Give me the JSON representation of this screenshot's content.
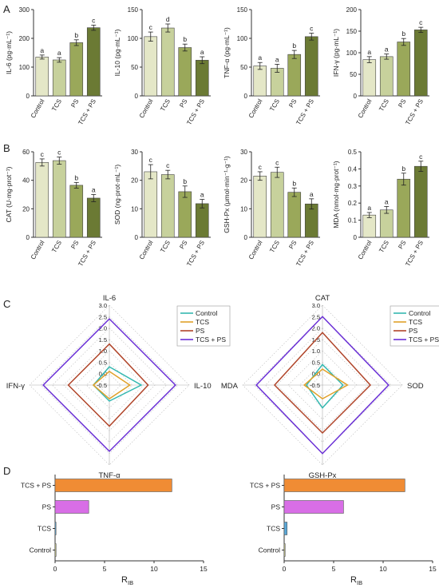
{
  "panels": [
    {
      "letter": "A"
    },
    {
      "letter": "B"
    },
    {
      "letter": "C"
    },
    {
      "letter": "D"
    }
  ],
  "colors": {
    "Control": "#e4e7c7",
    "TCS": "#c7d19c",
    "PS": "#9aa85a",
    "TCS + PS": "#6b7a34",
    "radar_Control": "#34b8b0",
    "radar_TCS": "#e0a12a",
    "radar_PS": "#b0452a",
    "radar_TCSPS": "#6a2fd6",
    "rib_Control": "#c9c98a",
    "rib_TCS": "#5aa8d8",
    "rib_PS": "#d86ee6",
    "rib_TCSPS": "#f08c34"
  },
  "chart_data": [
    {
      "id": "il6",
      "type": "bar",
      "panel": "A",
      "categories": [
        "Control",
        "TCS",
        "PS",
        "TCS + PS"
      ],
      "values": [
        135,
        125,
        185,
        237
      ],
      "errors": [
        7,
        8,
        10,
        9
      ],
      "letters": [
        "a",
        "a",
        "b",
        "c"
      ],
      "ylabel": "IL-6 (pg·mL⁻¹)",
      "ylim": [
        0,
        300
      ],
      "ticks": [
        0,
        100,
        200,
        300
      ]
    },
    {
      "id": "il10",
      "type": "bar",
      "panel": "A",
      "categories": [
        "Control",
        "TCS",
        "PS",
        "TCS + PS"
      ],
      "values": [
        103,
        118,
        84,
        62
      ],
      "errors": [
        8,
        7,
        6,
        6
      ],
      "letters": [
        "c",
        "d",
        "b",
        "a"
      ],
      "ylabel": "IL-10 (pg·mL⁻¹)",
      "ylim": [
        0,
        150
      ],
      "ticks": [
        0,
        50,
        100,
        150
      ]
    },
    {
      "id": "tnfa",
      "type": "bar",
      "panel": "A",
      "categories": [
        "Control",
        "TCS",
        "PS",
        "TCS + PS"
      ],
      "values": [
        52,
        48,
        72,
        103
      ],
      "errors": [
        6,
        7,
        7,
        6
      ],
      "letters": [
        "a",
        "a",
        "b",
        "c"
      ],
      "ylabel": "TNF-α (pg·mL⁻¹)",
      "ylim": [
        0,
        150
      ],
      "ticks": [
        0,
        50,
        100,
        150
      ]
    },
    {
      "id": "ifng",
      "type": "bar",
      "panel": "A",
      "categories": [
        "Control",
        "TCS",
        "PS",
        "TCS + PS"
      ],
      "values": [
        84,
        91,
        125,
        153
      ],
      "errors": [
        7,
        6,
        8,
        6
      ],
      "letters": [
        "a",
        "a",
        "b",
        "c"
      ],
      "ylabel": "IFN-γ (pg·mL⁻¹)",
      "ylim": [
        0,
        200
      ],
      "ticks": [
        0,
        50,
        100,
        150,
        200
      ]
    },
    {
      "id": "cat",
      "type": "bar",
      "panel": "B",
      "categories": [
        "Control",
        "TCS",
        "PS",
        "TCS + PS"
      ],
      "values": [
        52.5,
        53.8,
        36.5,
        27.5
      ],
      "errors": [
        2.5,
        2.5,
        2,
        2.5
      ],
      "letters": [
        "c",
        "c",
        "b",
        "a"
      ],
      "ylabel": "CAT (U·mg·prot⁻¹)",
      "ylim": [
        0,
        60
      ],
      "ticks": [
        0,
        20,
        40,
        60
      ]
    },
    {
      "id": "sod",
      "type": "bar",
      "panel": "B",
      "categories": [
        "Control",
        "TCS",
        "PS",
        "TCS + PS"
      ],
      "values": [
        23,
        22,
        16,
        11.8
      ],
      "errors": [
        2.5,
        1.5,
        2,
        1.5
      ],
      "letters": [
        "c",
        "c",
        "b",
        "a"
      ],
      "ylabel": "SOD (ng·prot·mL⁻¹)",
      "ylim": [
        0,
        30
      ],
      "ticks": [
        0,
        10,
        20,
        30
      ]
    },
    {
      "id": "gsh",
      "type": "bar",
      "panel": "B",
      "categories": [
        "Control",
        "TCS",
        "PS",
        "TCS + PS"
      ],
      "values": [
        21.5,
        22.8,
        15.8,
        11.7
      ],
      "errors": [
        1.5,
        1.8,
        1.5,
        1.8
      ],
      "letters": [
        "c",
        "c",
        "b",
        "a"
      ],
      "ylabel": "GSH-Px (μmol·min⁻¹·g⁻¹)",
      "ylim": [
        0,
        30
      ],
      "ticks": [
        0,
        10,
        20,
        30
      ]
    },
    {
      "id": "mda",
      "type": "bar",
      "panel": "B",
      "categories": [
        "Control",
        "TCS",
        "PS",
        "TCS + PS"
      ],
      "values": [
        0.13,
        0.16,
        0.34,
        0.415
      ],
      "errors": [
        0.015,
        0.02,
        0.035,
        0.03
      ],
      "letters": [
        "a",
        "a",
        "b",
        "c"
      ],
      "ylabel": "MDA (nmol·mg·prot⁻¹)",
      "ylim": [
        0,
        0.5
      ],
      "ticks": [
        0,
        0.1,
        0.2,
        0.3,
        0.4,
        0.5
      ]
    },
    {
      "id": "radar1",
      "type": "radar",
      "panel": "C",
      "axes": [
        "IL-6",
        "IL-10",
        "TNF-α",
        "IFN-γ"
      ],
      "rmin": -0.5,
      "rmax": 3.0,
      "ticks": [
        -0.5,
        0.0,
        0.5,
        1.0,
        1.5,
        2.0,
        2.5,
        3.0
      ],
      "tick_labels": [
        "-0.5",
        "0.0",
        "0.5",
        "1.0",
        "1.5",
        "2.0",
        "2.5",
        "3.0"
      ],
      "series": [
        {
          "name": "Control",
          "values": [
            0.3,
            0.9,
            0.2,
            0.2
          ]
        },
        {
          "name": "TCS",
          "values": [
            0.1,
            0.4,
            0.1,
            0.2
          ]
        },
        {
          "name": "PS",
          "values": [
            1.3,
            1.2,
            1.3,
            1.3
          ]
        },
        {
          "name": "TCS + PS",
          "values": [
            2.4,
            2.4,
            2.4,
            2.4
          ]
        }
      ]
    },
    {
      "id": "radar2",
      "type": "radar",
      "panel": "C",
      "axes": [
        "CAT",
        "SOD",
        "GSH-Px",
        "MDA"
      ],
      "rmin": -0.5,
      "rmax": 3.0,
      "ticks": [
        -0.5,
        0.0,
        0.5,
        1.0,
        1.5,
        2.0,
        2.5,
        3.0
      ],
      "tick_labels": [
        "-0.5",
        "0.0",
        "0.5",
        "1.0",
        "1.5",
        "2.0",
        "2.5",
        "3.0"
      ],
      "series": [
        {
          "name": "Control",
          "values": [
            0.4,
            0.4,
            0.5,
            0.2
          ]
        },
        {
          "name": "TCS",
          "values": [
            0.2,
            0.6,
            0.1,
            0.3
          ]
        },
        {
          "name": "PS",
          "values": [
            1.8,
            1.6,
            1.6,
            1.6
          ]
        },
        {
          "name": "TCS + PS",
          "values": [
            2.5,
            2.4,
            2.5,
            2.4
          ]
        }
      ]
    },
    {
      "id": "rib1",
      "type": "bar",
      "orientation": "horizontal",
      "panel": "D",
      "categories": [
        "TCS + PS",
        "PS",
        "TCS",
        "Control"
      ],
      "values": [
        11.8,
        3.4,
        0.0,
        0.1
      ],
      "xlabel": "R",
      "xlabel_sub": "IB",
      "xlim": [
        0,
        15
      ],
      "ticks": [
        0,
        5,
        10,
        15
      ]
    },
    {
      "id": "rib2",
      "type": "bar",
      "orientation": "horizontal",
      "panel": "D",
      "categories": [
        "TCS + PS",
        "PS",
        "TCS",
        "Control"
      ],
      "values": [
        12.2,
        6.0,
        0.3,
        0.1
      ],
      "xlabel": "R",
      "xlabel_sub": "IB",
      "xlim": [
        0,
        15
      ],
      "ticks": [
        0,
        5,
        10,
        15
      ]
    }
  ]
}
